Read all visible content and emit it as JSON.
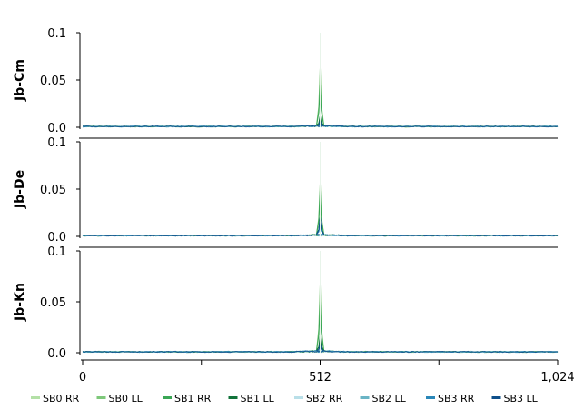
{
  "chart_data": {
    "type": "line",
    "x_ticks": [
      "0",
      "512",
      "1,024"
    ],
    "xlim": [
      0,
      1024
    ],
    "y_ticks": [
      "0.0",
      "0.05",
      "0.1"
    ],
    "ylim": [
      0,
      0.1
    ],
    "grid": false,
    "legend_position": "bottom",
    "series": [
      {
        "name": "SB0 RR",
        "color": "#b3e0a6"
      },
      {
        "name": "SB0 LL",
        "color": "#7ec87a"
      },
      {
        "name": "SB1 RR",
        "color": "#3aa655"
      },
      {
        "name": "SB1 LL",
        "color": "#11733a"
      },
      {
        "name": "SB2 RR",
        "color": "#b9dfe8"
      },
      {
        "name": "SB2 LL",
        "color": "#6ab4c5"
      },
      {
        "name": "SB3 RR",
        "color": "#2a87b8"
      },
      {
        "name": "SB3 LL",
        "color": "#0e4f8a"
      }
    ],
    "panels": [
      {
        "label": "Jb-Cm",
        "peak_x": 512,
        "peaks": [
          0.001,
          0.062,
          0.045,
          0.012,
          0.001,
          0.002,
          0.006,
          0.007
        ],
        "baseline": 0.001
      },
      {
        "label": "Jb-De",
        "peak_x": 512,
        "peaks": [
          0.001,
          0.055,
          0.048,
          0.02,
          0.001,
          0.002,
          0.014,
          0.02
        ],
        "baseline": 0.001
      },
      {
        "label": "Jb-Kn",
        "peak_x": 512,
        "peaks": [
          0.001,
          0.066,
          0.05,
          0.016,
          0.001,
          0.002,
          0.008,
          0.009
        ],
        "baseline": 0.001
      }
    ]
  }
}
